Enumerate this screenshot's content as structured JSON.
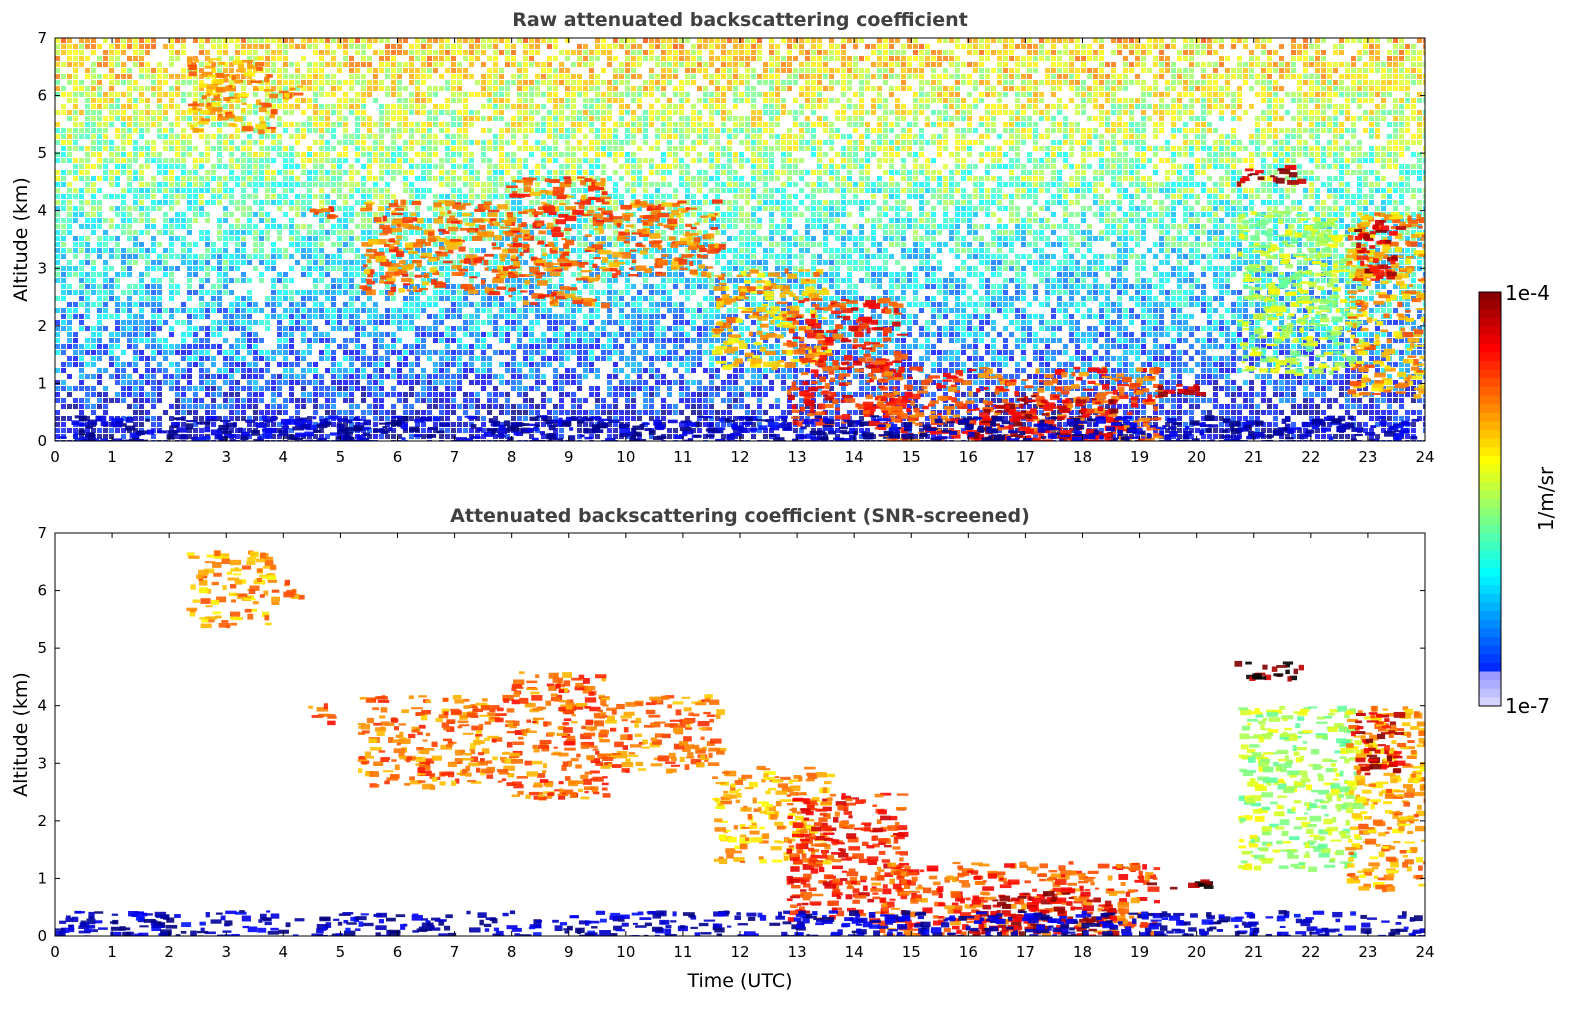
{
  "chart_data": [
    {
      "type": "heatmap",
      "title": "Raw attenuated backscattering coefficient",
      "xlabel": "",
      "ylabel": "Altitude (km)",
      "xlim": [
        0,
        24
      ],
      "ylim": [
        0,
        7
      ],
      "xticks": [
        "0",
        "1",
        "2",
        "3",
        "4",
        "5",
        "6",
        "7",
        "8",
        "9",
        "10",
        "11",
        "12",
        "13",
        "14",
        "15",
        "16",
        "17",
        "18",
        "19",
        "20",
        "21",
        "22",
        "23",
        "24"
      ],
      "yticks": [
        "0",
        "1",
        "2",
        "3",
        "4",
        "5",
        "6",
        "7"
      ],
      "screened": false,
      "colormap": "jet",
      "background_noise": true,
      "features": [
        {
          "name": "cloud-1",
          "x": [
            2.3,
            3.8
          ],
          "y": [
            5.4,
            6.7
          ],
          "level": 0.72
        },
        {
          "name": "cloud-2",
          "x": [
            3.9,
            4.3
          ],
          "y": [
            5.9,
            6.2
          ],
          "level": 0.74
        },
        {
          "name": "cloud-3",
          "x": [
            4.4,
            4.8
          ],
          "y": [
            3.7,
            4.1
          ],
          "level": 0.8
        },
        {
          "name": "cloud-4",
          "x": [
            5.3,
            8.0
          ],
          "y": [
            2.6,
            4.2
          ],
          "level": 0.76
        },
        {
          "name": "cloud-5",
          "x": [
            7.9,
            9.6
          ],
          "y": [
            2.4,
            4.6
          ],
          "level": 0.78
        },
        {
          "name": "cloud-6",
          "x": [
            9.5,
            11.6
          ],
          "y": [
            2.9,
            4.2
          ],
          "level": 0.76
        },
        {
          "name": "cloud-7",
          "x": [
            11.5,
            13.5
          ],
          "y": [
            1.3,
            3.0
          ],
          "level": 0.7
        },
        {
          "name": "cloud-8",
          "x": [
            12.8,
            14.8
          ],
          "y": [
            0.3,
            2.5
          ],
          "level": 0.84
        },
        {
          "name": "cloud-9",
          "x": [
            14.3,
            19.3
          ],
          "y": [
            0.0,
            1.3
          ],
          "level": 0.8
        },
        {
          "name": "cloud-10",
          "x": [
            16.0,
            18.5
          ],
          "y": [
            0.0,
            0.8
          ],
          "level": 0.94
        },
        {
          "name": "cloud-11",
          "x": [
            19.1,
            20.4
          ],
          "y": [
            0.85,
            1.0
          ],
          "level": 0.97
        },
        {
          "name": "cloud-12",
          "x": [
            20.6,
            21.8
          ],
          "y": [
            4.5,
            4.8
          ],
          "level": 0.97
        },
        {
          "name": "cloud-13",
          "x": [
            20.7,
            22.8
          ],
          "y": [
            1.2,
            4.0
          ],
          "level": 0.55
        },
        {
          "name": "cloud-14",
          "x": [
            22.6,
            24.0
          ],
          "y": [
            0.8,
            4.0
          ],
          "level": 0.72
        },
        {
          "name": "cloud-15",
          "x": [
            22.7,
            23.5
          ],
          "y": [
            2.8,
            3.9
          ],
          "level": 0.92
        },
        {
          "name": "boundary-layer",
          "x": [
            0,
            24
          ],
          "y": [
            0.0,
            0.45
          ],
          "level": 0.06
        }
      ]
    },
    {
      "type": "heatmap",
      "title": "Attenuated backscattering coefficient (SNR-screened)",
      "xlabel": "Time (UTC)",
      "ylabel": "Altitude (km)",
      "xlim": [
        0,
        24
      ],
      "ylim": [
        0,
        7
      ],
      "xticks": [
        "0",
        "1",
        "2",
        "3",
        "4",
        "5",
        "6",
        "7",
        "8",
        "9",
        "10",
        "11",
        "12",
        "13",
        "14",
        "15",
        "16",
        "17",
        "18",
        "19",
        "20",
        "21",
        "22",
        "23",
        "24"
      ],
      "yticks": [
        "0",
        "1",
        "2",
        "3",
        "4",
        "5",
        "6",
        "7"
      ],
      "screened": true,
      "colormap": "jet",
      "background_noise": false,
      "features": [
        {
          "name": "cloud-1",
          "x": [
            2.3,
            3.8
          ],
          "y": [
            5.4,
            6.7
          ],
          "level": 0.72
        },
        {
          "name": "cloud-2",
          "x": [
            3.9,
            4.3
          ],
          "y": [
            5.9,
            6.2
          ],
          "level": 0.74
        },
        {
          "name": "cloud-3",
          "x": [
            4.4,
            4.8
          ],
          "y": [
            3.7,
            4.1
          ],
          "level": 0.8
        },
        {
          "name": "cloud-4",
          "x": [
            5.3,
            8.0
          ],
          "y": [
            2.6,
            4.2
          ],
          "level": 0.76
        },
        {
          "name": "cloud-5",
          "x": [
            7.9,
            9.6
          ],
          "y": [
            2.4,
            4.6
          ],
          "level": 0.78
        },
        {
          "name": "cloud-6",
          "x": [
            9.5,
            11.6
          ],
          "y": [
            2.9,
            4.2
          ],
          "level": 0.76
        },
        {
          "name": "cloud-7",
          "x": [
            11.5,
            13.5
          ],
          "y": [
            1.3,
            3.0
          ],
          "level": 0.7
        },
        {
          "name": "cloud-8",
          "x": [
            12.8,
            14.8
          ],
          "y": [
            0.3,
            2.5
          ],
          "level": 0.84
        },
        {
          "name": "cloud-9",
          "x": [
            14.3,
            19.3
          ],
          "y": [
            0.0,
            1.3
          ],
          "level": 0.8
        },
        {
          "name": "cloud-10",
          "x": [
            16.0,
            18.5
          ],
          "y": [
            0.0,
            0.8
          ],
          "level": 0.94
        },
        {
          "name": "cloud-11",
          "x": [
            19.1,
            20.4
          ],
          "y": [
            0.85,
            1.0
          ],
          "level": 1.0
        },
        {
          "name": "cloud-12",
          "x": [
            20.6,
            21.8
          ],
          "y": [
            4.5,
            4.8
          ],
          "level": 1.0
        },
        {
          "name": "cloud-13",
          "x": [
            20.7,
            22.8
          ],
          "y": [
            1.2,
            4.0
          ],
          "level": 0.55
        },
        {
          "name": "cloud-14",
          "x": [
            22.6,
            24.0
          ],
          "y": [
            0.8,
            4.0
          ],
          "level": 0.72
        },
        {
          "name": "cloud-15",
          "x": [
            22.7,
            23.5
          ],
          "y": [
            2.8,
            3.9
          ],
          "level": 0.92
        },
        {
          "name": "boundary-layer",
          "x": [
            0,
            24
          ],
          "y": [
            0.0,
            0.45
          ],
          "level": 0.06
        }
      ]
    }
  ],
  "colorbar": {
    "label": "1/m/sr",
    "max_label": "1e-4",
    "min_label": "1e-7",
    "colormap": "jet"
  }
}
